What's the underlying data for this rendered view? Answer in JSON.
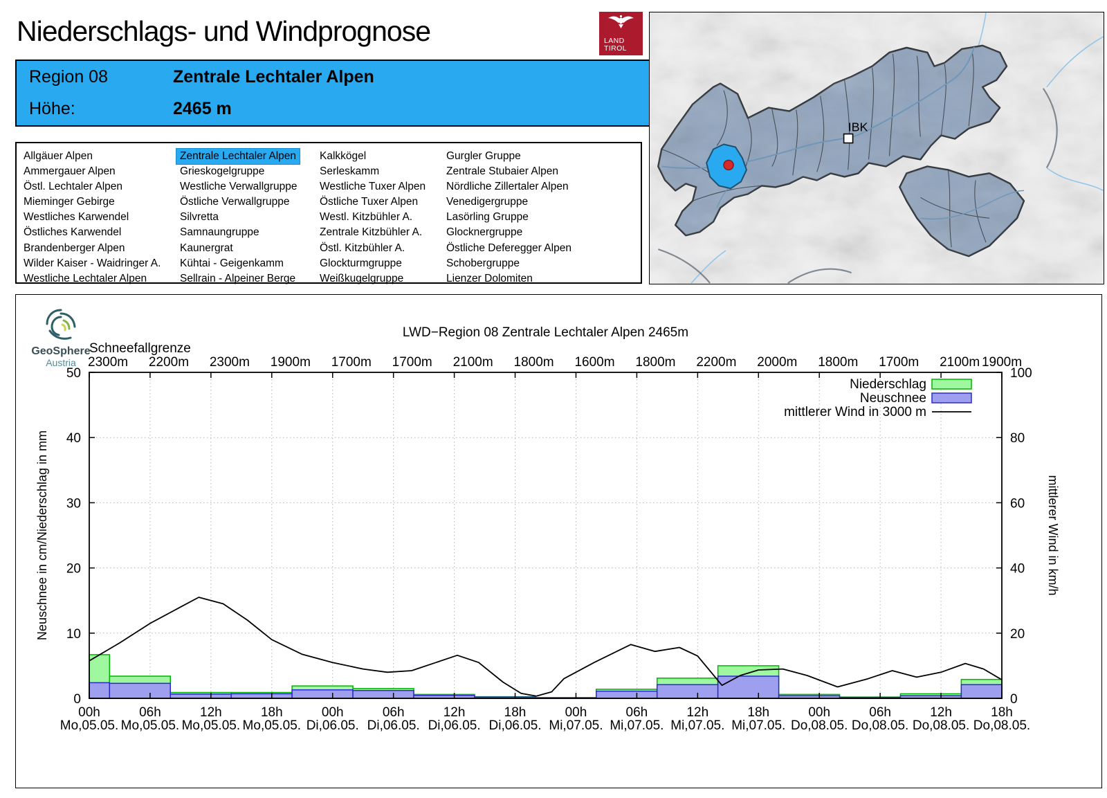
{
  "page": {
    "title": "Niederschlags- und Windprognose"
  },
  "land_tirol_logo": {
    "line1": "LAND",
    "line2": "TIROL",
    "color": "#ab1a2d"
  },
  "header": {
    "region_label": "Region 08",
    "region_name": "Zentrale Lechtaler Alpen",
    "hoehe_label": "Höhe:",
    "hoehe_value": "2465 m",
    "accent_color": "#29a9ef"
  },
  "region_list": {
    "selected": "Zentrale Lechtaler Alpen",
    "columns": [
      [
        "Allgäuer Alpen",
        "Ammergauer Alpen",
        "Östl. Lechtaler Alpen",
        "Mieminger Gebirge",
        "Westliches Karwendel",
        "Östliches Karwendel",
        "Brandenberger Alpen",
        "Wilder Kaiser - Waidringer A.",
        "Westliche Lechtaler Alpen"
      ],
      [
        "Zentrale Lechtaler Alpen",
        "Grieskogelgruppe",
        "Westliche Verwallgruppe",
        "Östliche Verwallgruppe",
        "Silvretta",
        "Samnaungruppe",
        "Kaunergrat",
        "Kühtai - Geigenkamm",
        "Sellrain - Alpeiner Berge"
      ],
      [
        "Kalkkögel",
        "Serleskamm",
        "Westliche Tuxer Alpen",
        "Östliche Tuxer Alpen",
        "Westl. Kitzbühler A.",
        "Zentrale Kitzbühler A.",
        "Östl. Kitzbühler A.",
        "Glockturmgruppe",
        "Weißkugelgruppe"
      ],
      [
        "Gurgler Gruppe",
        "Zentrale Stubaier Alpen",
        "Nördliche Zillertaler Alpen",
        "Venedigergruppe",
        "Lasörling Gruppe",
        "Glocknergruppe",
        "Östliche Deferegger Alpen",
        "Schobergruppe",
        "Lienzer Dolomiten"
      ]
    ]
  },
  "map": {
    "city_label": "IBK",
    "highlight_color": "#29a9ef",
    "marker_color": "#d62a2a",
    "region_fill": "#90a4be"
  },
  "geosphere_logo": {
    "line1": "GeoSphere",
    "line2": "Austria"
  },
  "chart_data": {
    "type": "bar+line composite",
    "title": "LWD−Region 08 Zentrale Lechtaler Alpen 2465m",
    "snowline_label": "Schneefallgrenze",
    "snowline_values": [
      "2300m",
      "2200m",
      "2300m",
      "1900m",
      "1700m",
      "1700m",
      "2100m",
      "1800m",
      "1600m",
      "1800m",
      "2200m",
      "2000m",
      "1800m",
      "1700m",
      "2100m",
      "1900m"
    ],
    "x_time_labels": [
      "00h",
      "06h",
      "12h",
      "18h",
      "00h",
      "06h",
      "12h",
      "18h",
      "00h",
      "06h",
      "12h",
      "18h",
      "00h",
      "06h",
      "12h",
      "18h"
    ],
    "x_date_labels": [
      "Mo,05.05.",
      "Mo,05.05.",
      "Mo,05.05.",
      "Mo,05.05.",
      "Di,06.05.",
      "Di,06.05.",
      "Di,06.05.",
      "Di,06.05.",
      "Mi,07.05.",
      "Mi,07.05.",
      "Mi,07.05.",
      "Mi,07.05.",
      "Do,08.05.",
      "Do,08.05.",
      "Do,08.05.",
      "Do,08.05."
    ],
    "ylabel_left": "Neuschnee in cm/Niederschlag in mm",
    "ylabel_right": "mittlerer Wind in km/h",
    "ylim_left": [
      0,
      50
    ],
    "ylim_right": [
      0,
      100
    ],
    "yticks_left": [
      0,
      10,
      20,
      30,
      40,
      50
    ],
    "yticks_right": [
      0,
      20,
      40,
      60,
      80,
      100
    ],
    "grid": "dotted",
    "legend_position": "top-right inside",
    "series": [
      {
        "name": "Niederschlag",
        "type": "bar",
        "unit": "mm",
        "color": "#9ff79f",
        "border": "#00b400",
        "values": [
          6.7,
          3.4,
          0.9,
          0.9,
          1.9,
          1.5,
          0.6,
          0.25,
          0.12,
          1.4,
          3.1,
          5.0,
          0.6,
          0.2,
          0.7,
          2.9
        ]
      },
      {
        "name": "Neuschnee",
        "type": "bar",
        "unit": "cm",
        "color": "#9f9ff0",
        "border": "#2a2ac8",
        "values": [
          2.4,
          2.3,
          0.65,
          0.7,
          1.3,
          1.2,
          0.45,
          0.2,
          0.08,
          1.1,
          2.1,
          3.4,
          0.4,
          0.15,
          0.4,
          2.1
        ]
      },
      {
        "name": "mittlerer Wind in 3000 m",
        "type": "line",
        "axis": "right",
        "unit": "km/h",
        "color": "#000000",
        "x": [
          0,
          0.5,
          1,
          1.5,
          1.8,
          2.2,
          2.6,
          3,
          3.5,
          4,
          4.5,
          4.9,
          5.3,
          5.7,
          6.05,
          6.4,
          6.8,
          7.1,
          7.35,
          7.6,
          7.8,
          8.3,
          8.9,
          9.3,
          9.7,
          10,
          10.4,
          10.7,
          11,
          11.4,
          11.8,
          12.3,
          12.8,
          13.2,
          13.6,
          14,
          14.4,
          14.7,
          15
        ],
        "values": [
          11.5,
          17,
          23,
          28,
          31,
          29,
          24,
          18,
          13.5,
          11,
          9,
          8,
          8.5,
          11,
          13.2,
          11,
          5,
          1.5,
          0.7,
          2,
          6,
          11,
          16.5,
          14.4,
          15.6,
          13,
          4,
          7,
          8.7,
          9,
          7,
          3.5,
          6,
          8.5,
          6.5,
          8,
          10.7,
          9,
          5.7
        ]
      }
    ]
  }
}
